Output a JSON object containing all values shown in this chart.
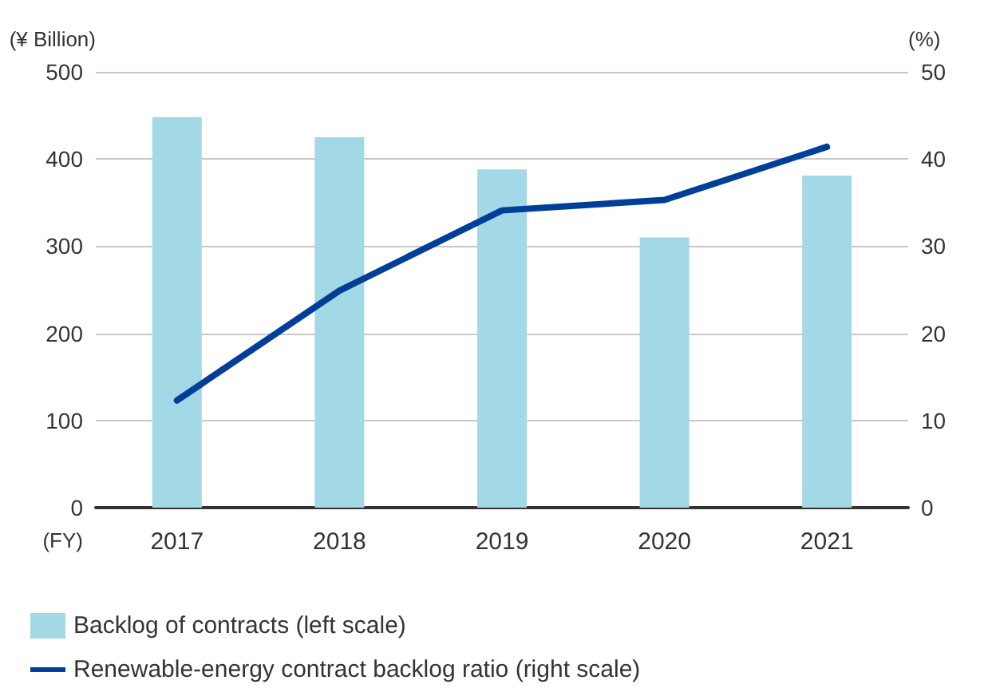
{
  "chart_data": {
    "type": "bar",
    "xlabel": "(FY)",
    "ylabel": "(¥ Billion)",
    "y2label": "(%)",
    "categories": [
      "2017",
      "2018",
      "2019",
      "2020",
      "2021"
    ],
    "series": [
      {
        "name": "Backlog of contracts (left scale)",
        "color": "#a3d8e6",
        "values": [
          448,
          425,
          388,
          310,
          381
        ]
      },
      {
        "name": "Renewable-energy contract backlog ratio (right scale)",
        "type": "line",
        "axis": "y2",
        "color": "#003f98",
        "values": [
          12.3,
          24.9,
          34.1,
          35.3,
          41.4
        ]
      }
    ],
    "ylim": [
      0,
      500
    ],
    "yticks": [
      0,
      100,
      200,
      300,
      400,
      500
    ],
    "y2lim": [
      0,
      50
    ],
    "y2ticks": [
      0,
      10,
      20,
      30,
      40,
      50
    ],
    "grid": "y",
    "legend": "bottom left",
    "marker": "none",
    "line_style": "solid"
  }
}
